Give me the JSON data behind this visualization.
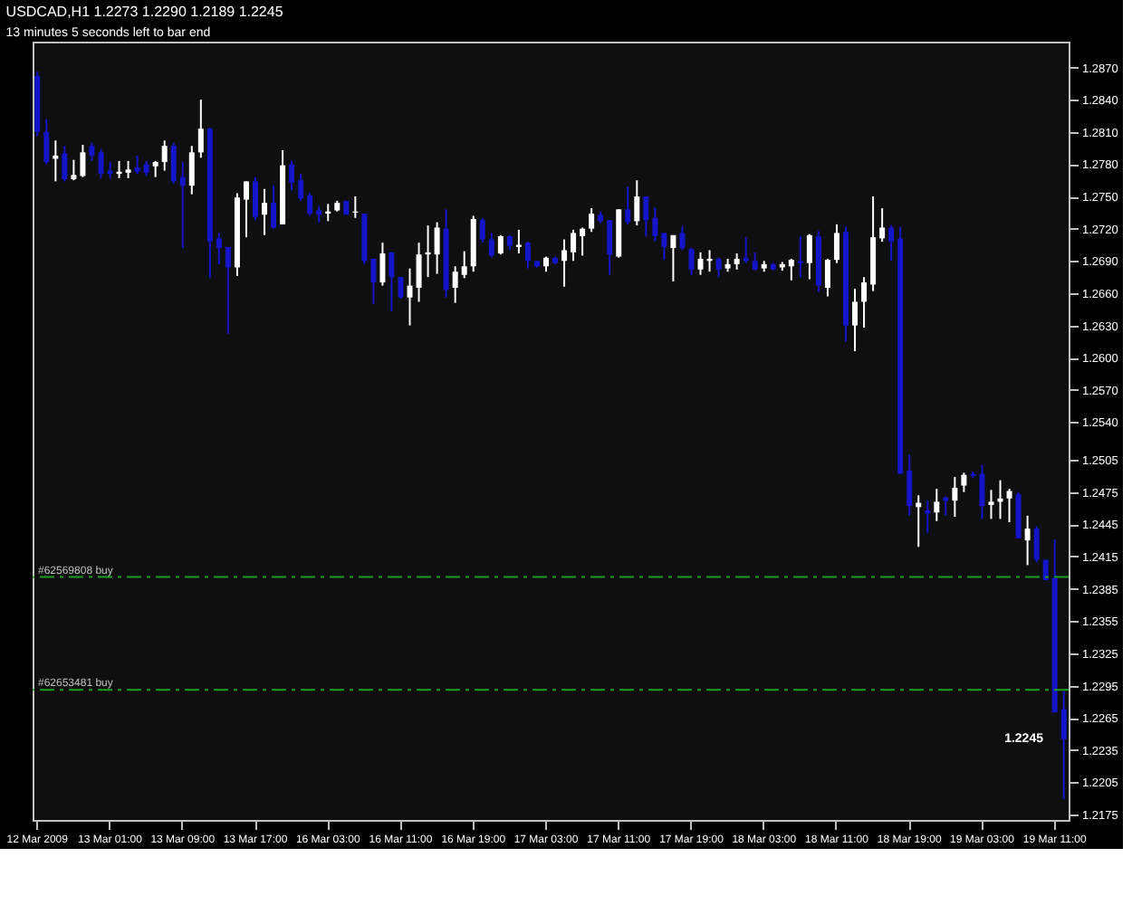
{
  "chart_data": {
    "type": "candlestick",
    "title": "USDCAD,H1  1.2273 1.2290 1.2189 1.2245",
    "subtitle": "13 minutes 5 seconds left to bar end",
    "categories": [
      "12 Mar 2009",
      null,
      null,
      null,
      null,
      null,
      null,
      null,
      "13 Mar 01:00",
      null,
      null,
      null,
      null,
      null,
      null,
      null,
      "13 Mar 09:00",
      null,
      null,
      null,
      null,
      null,
      null,
      null,
      "13 Mar 17:00",
      null,
      null,
      null,
      null,
      null,
      null,
      null,
      "16 Mar 03:00",
      null,
      null,
      null,
      null,
      null,
      null,
      null,
      "16 Mar 11:00",
      null,
      null,
      null,
      null,
      null,
      null,
      null,
      "16 Mar 19:00",
      null,
      null,
      null,
      null,
      null,
      null,
      null,
      "17 Mar 03:00",
      null,
      null,
      null,
      null,
      null,
      null,
      null,
      "17 Mar 11:00",
      null,
      null,
      null,
      null,
      null,
      null,
      null,
      "17 Mar 19:00",
      null,
      null,
      null,
      null,
      null,
      null,
      null,
      "18 Mar 03:00",
      null,
      null,
      null,
      null,
      null,
      null,
      null,
      "18 Mar 11:00",
      null,
      null,
      null,
      null,
      null,
      null,
      null,
      "18 Mar 19:00",
      null,
      null,
      null,
      null,
      null,
      null,
      null,
      "19 Mar 03:00",
      null,
      null,
      null,
      null,
      null,
      null,
      null,
      "19 Mar 11:00",
      null
    ],
    "ohlc": [
      [
        1.2862,
        1.2866,
        1.2806,
        1.281
      ],
      [
        1.281,
        1.2822,
        1.278,
        1.2782
      ],
      [
        1.2785,
        1.2802,
        1.2764,
        1.2788
      ],
      [
        1.279,
        1.2797,
        1.2764,
        1.2766
      ],
      [
        1.2766,
        1.2784,
        1.2765,
        1.277
      ],
      [
        1.2769,
        1.2798,
        1.2768,
        1.2791
      ],
      [
        1.2797,
        1.28,
        1.2783,
        1.2788
      ],
      [
        1.2791,
        1.2794,
        1.2767,
        1.2771
      ],
      [
        1.2774,
        1.2782,
        1.2767,
        1.2771
      ],
      [
        1.2771,
        1.2783,
        1.2767,
        1.2773
      ],
      [
        1.2772,
        1.2783,
        1.2767,
        1.2775
      ],
      [
        1.2777,
        1.2788,
        1.2771,
        1.2773
      ],
      [
        1.278,
        1.2783,
        1.2769,
        1.2772
      ],
      [
        1.2778,
        1.2783,
        1.2768,
        1.2782
      ],
      [
        1.2782,
        1.2802,
        1.2774,
        1.2797
      ],
      [
        1.2797,
        1.28,
        1.2762,
        1.2764
      ],
      [
        1.2768,
        1.2782,
        1.2702,
        1.276
      ],
      [
        1.276,
        1.2797,
        1.2752,
        1.2791
      ],
      [
        1.2791,
        1.284,
        1.2786,
        1.2813
      ],
      [
        1.2813,
        1.2814,
        1.2674,
        1.2708
      ],
      [
        1.2711,
        1.2716,
        1.2687,
        1.2702
      ],
      [
        1.2703,
        1.2703,
        1.2622,
        1.2684
      ],
      [
        1.2684,
        1.2753,
        1.2676,
        1.2749
      ],
      [
        1.2747,
        1.2764,
        1.2712,
        1.2764
      ],
      [
        1.2764,
        1.2768,
        1.2728,
        1.2731
      ],
      [
        1.2733,
        1.2757,
        1.2714,
        1.2744
      ],
      [
        1.2744,
        1.276,
        1.272,
        1.2721
      ],
      [
        1.2724,
        1.2793,
        1.2724,
        1.2779
      ],
      [
        1.278,
        1.2783,
        1.2756,
        1.2763
      ],
      [
        1.2765,
        1.2771,
        1.2746,
        1.2748
      ],
      [
        1.2751,
        1.2753,
        1.2732,
        1.2734
      ],
      [
        1.2737,
        1.2741,
        1.2726,
        1.2733
      ],
      [
        1.2734,
        1.2743,
        1.2727,
        1.2736
      ],
      [
        1.2737,
        1.2746,
        1.2736,
        1.2744
      ],
      [
        1.2746,
        1.2746,
        1.2733,
        1.2733
      ],
      [
        1.2735,
        1.275,
        1.273,
        1.2736
      ],
      [
        1.2734,
        1.2734,
        1.2687,
        1.269
      ],
      [
        1.2692,
        1.2692,
        1.265,
        1.267
      ],
      [
        1.267,
        1.2707,
        1.2667,
        1.2697
      ],
      [
        1.2698,
        1.2698,
        1.2643,
        1.2675
      ],
      [
        1.2675,
        1.2675,
        1.2655,
        1.2656
      ],
      [
        1.2656,
        1.2683,
        1.263,
        1.2667
      ],
      [
        1.2665,
        1.2707,
        1.2652,
        1.2696
      ],
      [
        1.2696,
        1.2723,
        1.2675,
        1.2698
      ],
      [
        1.2696,
        1.2726,
        1.2678,
        1.2721
      ],
      [
        1.272,
        1.2738,
        1.2656,
        1.2663
      ],
      [
        1.2665,
        1.2685,
        1.2651,
        1.268
      ],
      [
        1.2677,
        1.2699,
        1.2674,
        1.2685
      ],
      [
        1.2685,
        1.2732,
        1.268,
        1.2729
      ],
      [
        1.2728,
        1.273,
        1.2707,
        1.271
      ],
      [
        1.271,
        1.2716,
        1.2693,
        1.2695
      ],
      [
        1.2697,
        1.2714,
        1.2696,
        1.2713
      ],
      [
        1.2713,
        1.2714,
        1.27,
        1.2704
      ],
      [
        1.2703,
        1.2719,
        1.2697,
        1.2705
      ],
      [
        1.2707,
        1.2708,
        1.2683,
        1.269
      ],
      [
        1.269,
        1.269,
        1.2684,
        1.2685
      ],
      [
        1.2685,
        1.2694,
        1.268,
        1.2693
      ],
      [
        1.2693,
        1.2694,
        1.2687,
        1.2688
      ],
      [
        1.269,
        1.271,
        1.2666,
        1.27
      ],
      [
        1.2698,
        1.2719,
        1.269,
        1.2716
      ],
      [
        1.2713,
        1.2721,
        1.2695,
        1.272
      ],
      [
        1.272,
        1.2739,
        1.2717,
        1.2734
      ],
      [
        1.2733,
        1.2736,
        1.2725,
        1.2727
      ],
      [
        1.2728,
        1.2728,
        1.2677,
        1.2696
      ],
      [
        1.2694,
        1.2738,
        1.2693,
        1.2738
      ],
      [
        1.2738,
        1.2759,
        1.2724,
        1.2726
      ],
      [
        1.2727,
        1.2765,
        1.2723,
        1.275
      ],
      [
        1.275,
        1.275,
        1.2713,
        1.2728
      ],
      [
        1.273,
        1.274,
        1.2708,
        1.2713
      ],
      [
        1.2716,
        1.2716,
        1.2691,
        1.2703
      ],
      [
        1.2702,
        1.2714,
        1.2671,
        1.2714
      ],
      [
        1.2716,
        1.2722,
        1.27,
        1.2702
      ],
      [
        1.2701,
        1.2702,
        1.2677,
        1.2682
      ],
      [
        1.2682,
        1.2698,
        1.2677,
        1.2692
      ],
      [
        1.269,
        1.27,
        1.268,
        1.2692
      ],
      [
        1.2692,
        1.2693,
        1.2675,
        1.2682
      ],
      [
        1.2683,
        1.2692,
        1.268,
        1.2687
      ],
      [
        1.2687,
        1.2697,
        1.2682,
        1.2692
      ],
      [
        1.2693,
        1.2712,
        1.2688,
        1.269
      ],
      [
        1.269,
        1.2698,
        1.2681,
        1.2682
      ],
      [
        1.2683,
        1.269,
        1.268,
        1.2687
      ],
      [
        1.2687,
        1.2688,
        1.2681,
        1.2682
      ],
      [
        1.2684,
        1.2689,
        1.2681,
        1.2687
      ],
      [
        1.2685,
        1.2692,
        1.2672,
        1.2691
      ],
      [
        1.269,
        1.2713,
        1.2675,
        1.2688
      ],
      [
        1.2688,
        1.2715,
        1.2673,
        1.2714
      ],
      [
        1.2713,
        1.2718,
        1.2661,
        1.2667
      ],
      [
        1.2665,
        1.2692,
        1.2657,
        1.2691
      ],
      [
        1.2691,
        1.2724,
        1.2688,
        1.2716
      ],
      [
        1.2717,
        1.2722,
        1.2615,
        1.263
      ],
      [
        1.263,
        1.2664,
        1.2606,
        1.2652
      ],
      [
        1.2652,
        1.2675,
        1.2628,
        1.267
      ],
      [
        1.2668,
        1.275,
        1.2662,
        1.2712
      ],
      [
        1.2711,
        1.2739,
        1.2708,
        1.2721
      ],
      [
        1.2721,
        1.2723,
        1.269,
        1.2708
      ],
      [
        1.2711,
        1.2722,
        1.2492,
        1.2492
      ],
      [
        1.2495,
        1.251,
        1.2453,
        1.2462
      ],
      [
        1.2461,
        1.2472,
        1.2424,
        1.2465
      ],
      [
        1.2458,
        1.2467,
        1.2437,
        1.2455
      ],
      [
        1.2456,
        1.2478,
        1.2448,
        1.2466
      ],
      [
        1.247,
        1.2471,
        1.2453,
        1.2467
      ],
      [
        1.2467,
        1.2489,
        1.2452,
        1.2479
      ],
      [
        1.2481,
        1.2493,
        1.2475,
        1.2491
      ],
      [
        1.2492,
        1.2494,
        1.2488,
        1.249
      ],
      [
        1.2492,
        1.25,
        1.245,
        1.2462
      ],
      [
        1.2463,
        1.2477,
        1.245,
        1.2466
      ],
      [
        1.2466,
        1.2486,
        1.245,
        1.2469
      ],
      [
        1.2469,
        1.2478,
        1.2447,
        1.2476
      ],
      [
        1.2473,
        1.2475,
        1.2432,
        1.2432
      ],
      [
        1.243,
        1.2453,
        1.2407,
        1.2441
      ],
      [
        1.2441,
        1.2443,
        1.241,
        1.2412
      ],
      [
        1.2412,
        1.2412,
        1.2393,
        1.2393
      ],
      [
        1.2395,
        1.2431,
        1.227,
        1.227
      ],
      [
        1.2273,
        1.229,
        1.2189,
        1.2245
      ]
    ],
    "colors": [
      "#1414c8",
      "#1414c8",
      "#ffffff",
      "#1414c8",
      "#ffffff",
      "#ffffff",
      "#1414c8",
      "#1414c8",
      "#1414c8",
      "#ffffff",
      "#ffffff",
      "#1414c8",
      "#1414c8",
      "#ffffff",
      "#ffffff",
      "#1414c8",
      "#1414c8",
      "#ffffff",
      "#ffffff",
      "#1414c8",
      "#1414c8",
      "#1414c8",
      "#ffffff",
      "#ffffff",
      "#1414c8",
      "#ffffff",
      "#1414c8",
      "#ffffff",
      "#1414c8",
      "#1414c8",
      "#1414c8",
      "#1414c8",
      "#ffffff",
      "#ffffff",
      "#1414c8",
      "#ffffff",
      "#1414c8",
      "#1414c8",
      "#ffffff",
      "#1414c8",
      "#1414c8",
      "#ffffff",
      "#ffffff",
      "#ffffff",
      "#ffffff",
      "#1414c8",
      "#ffffff",
      "#ffffff",
      "#ffffff",
      "#1414c8",
      "#1414c8",
      "#ffffff",
      "#1414c8",
      "#ffffff",
      "#1414c8",
      "#1414c8",
      "#ffffff",
      "#1414c8",
      "#ffffff",
      "#ffffff",
      "#ffffff",
      "#ffffff",
      "#1414c8",
      "#1414c8",
      "#ffffff",
      "#1414c8",
      "#ffffff",
      "#1414c8",
      "#1414c8",
      "#1414c8",
      "#ffffff",
      "#1414c8",
      "#1414c8",
      "#ffffff",
      "#ffffff",
      "#1414c8",
      "#ffffff",
      "#ffffff",
      "#1414c8",
      "#1414c8",
      "#ffffff",
      "#1414c8",
      "#ffffff",
      "#ffffff",
      "#1414c8",
      "#ffffff",
      "#1414c8",
      "#ffffff",
      "#ffffff",
      "#1414c8",
      "#ffffff",
      "#ffffff",
      "#ffffff",
      "#ffffff",
      "#1414c8",
      "#1414c8",
      "#1414c8",
      "#ffffff",
      "#1414c8",
      "#ffffff",
      "#1414c8",
      "#ffffff",
      "#ffffff",
      "#1414c8",
      "#1414c8",
      "#ffffff",
      "#ffffff",
      "#ffffff",
      "#1414c8",
      "#ffffff",
      "#1414c8",
      "#1414c8",
      "#1414c8",
      "#1414c8"
    ],
    "ylim": [
      1.217,
      1.2894
    ],
    "yticks": [
      {
        "value": 1.287,
        "label": "1.2870"
      },
      {
        "value": 1.284,
        "label": "1.2840"
      },
      {
        "value": 1.281,
        "label": "1.2810"
      },
      {
        "value": 1.278,
        "label": "1.2780"
      },
      {
        "value": 1.275,
        "label": "1.2750"
      },
      {
        "value": 1.272,
        "label": "1.2720"
      },
      {
        "value": 1.269,
        "label": "1.2690"
      },
      {
        "value": 1.266,
        "label": "1.2660"
      },
      {
        "value": 1.263,
        "label": "1.2630"
      },
      {
        "value": 1.26,
        "label": "1.2600"
      },
      {
        "value": 1.257,
        "label": "1.2570"
      },
      {
        "value": 1.254,
        "label": "1.2540"
      },
      1.2505,
      1.2475,
      1.2445,
      1.2415,
      1.2385,
      1.2355,
      1.2325,
      1.2295,
      1.2265,
      1.2235,
      1.2205,
      1.2175
    ],
    "ref_lines": [
      {
        "axis": "y",
        "value": 1.2396,
        "label": "#62569808 buy",
        "color": "#1e9e1e",
        "line_style": "dashed"
      },
      {
        "axis": "y",
        "value": 1.2291,
        "label": "#62653481 buy",
        "color": "#1e9e1e",
        "line_style": "dashed"
      }
    ],
    "annotations": [
      "1.2245"
    ],
    "grid": false
  }
}
